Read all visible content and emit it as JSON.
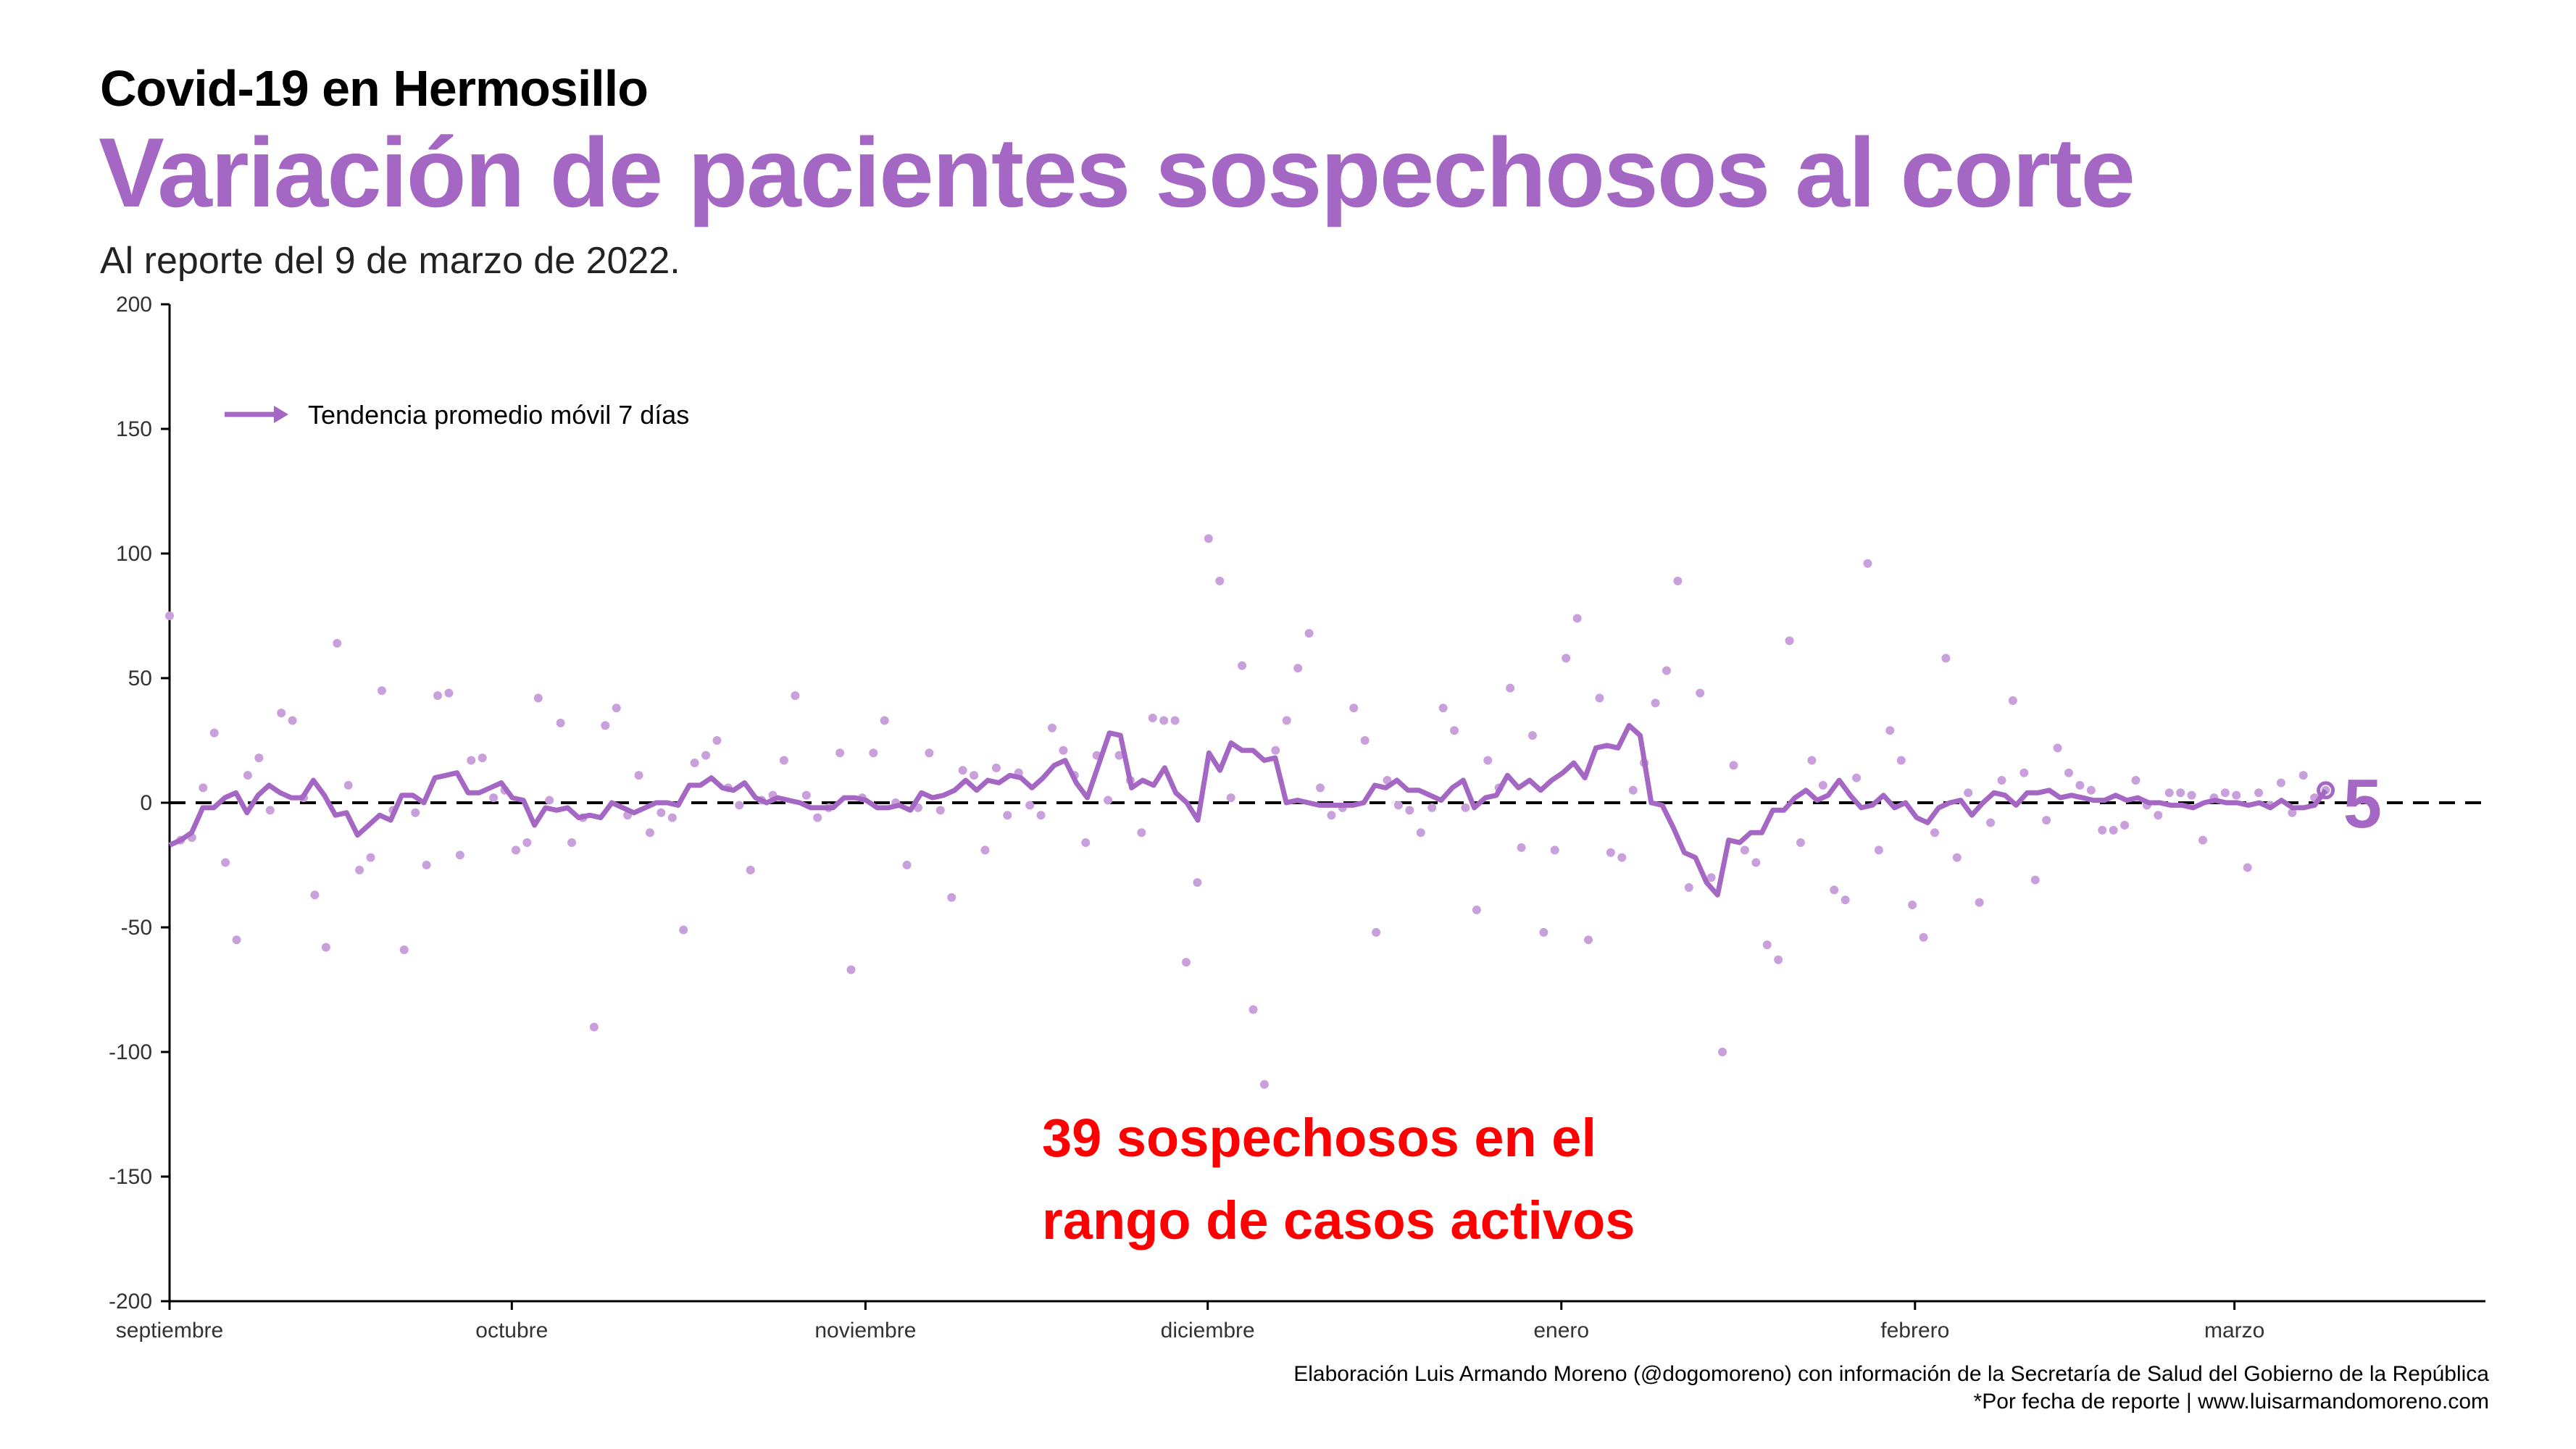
{
  "header": {
    "title": "Covid-19 en Hermosillo",
    "headline": "Variación de pacientes sospechosos al corte",
    "subtitle": "Al reporte del 9 de marzo de 2022."
  },
  "footer": {
    "credit_line1": "Elaboración Luis Armando Moreno (@dogomoreno) con información de la Secretaría de Salud del Gobierno de la República",
    "credit_line2": "*Por fecha de reporte | www.luisarmandomoreno.com"
  },
  "colors": {
    "accent": "#a567c4",
    "points": "#c9a0dc",
    "annotation": "#ff0000",
    "reference_line": "#000000"
  },
  "chart_data": {
    "type": "line",
    "title": "Variación de pacientes sospechosos al corte",
    "xlabel": "",
    "ylabel": "",
    "ylim": [
      -200,
      200
    ],
    "yticks": [
      200,
      150,
      100,
      50,
      0,
      -50,
      -100,
      -150,
      -200
    ],
    "ytick_labels": [
      "200",
      "150",
      "100",
      "50",
      "0",
      "-50",
      "-100",
      "-150",
      "-200"
    ],
    "x_start": "2021-09-01",
    "x_end": "2022-03-09",
    "xlim": [
      "2021-09-01",
      "2022-03-23"
    ],
    "x_ticks": [
      {
        "date": "2021-09-01",
        "label": "septiembre"
      },
      {
        "date": "2021-10-01",
        "label": "octubre"
      },
      {
        "date": "2021-11-01",
        "label": "noviembre"
      },
      {
        "date": "2021-12-01",
        "label": "diciembre"
      },
      {
        "date": "2022-01-01",
        "label": "enero"
      },
      {
        "date": "2022-02-01",
        "label": "febrero"
      },
      {
        "date": "2022-03-01",
        "label": "marzo"
      }
    ],
    "reference_line": 0,
    "legend": {
      "label": "Tendencia promedio móvil 7 días",
      "position": "top-left"
    },
    "series": [
      {
        "name": "Tendencia promedio móvil 7 días",
        "style": "line",
        "values": [
          -17,
          -15,
          -12,
          -2,
          -2,
          2,
          4,
          -4,
          3,
          7,
          4,
          2,
          2,
          9,
          3,
          -5,
          -4,
          -13,
          -9,
          -5,
          -7,
          3,
          3,
          0,
          10,
          11,
          12,
          4,
          4,
          6,
          8,
          2,
          1,
          -9,
          -2,
          -3,
          -2,
          -6,
          -5,
          -6,
          0,
          -2,
          -4,
          -2,
          0,
          0,
          -1,
          7,
          7,
          10,
          6,
          5,
          8,
          2,
          0,
          2,
          1,
          0,
          -2,
          -2,
          -2,
          2,
          2,
          1,
          -2,
          -2,
          -1,
          -3,
          4,
          2,
          3,
          5,
          9,
          5,
          9,
          8,
          11,
          10,
          6,
          10,
          15,
          17,
          8,
          2,
          15,
          28,
          27,
          6,
          9,
          7,
          14,
          4,
          0,
          -7,
          20,
          13,
          24,
          21,
          21,
          17,
          18,
          0,
          1,
          0,
          -1,
          -1,
          -1,
          -1,
          0,
          7,
          6,
          9,
          5,
          5,
          3,
          1,
          6,
          9,
          -2,
          2,
          3,
          11,
          6,
          9,
          5,
          9,
          12,
          16,
          10,
          22,
          23,
          22,
          31,
          27,
          0,
          -1,
          -10,
          -20,
          -22,
          -32,
          -37,
          -15,
          -16,
          -12,
          -12,
          -3,
          -3,
          2,
          5,
          1,
          3,
          9,
          3,
          -2,
          -1,
          3,
          -2,
          0,
          -6,
          -8,
          -2,
          0,
          1,
          -5,
          0,
          4,
          3,
          -1,
          4,
          4,
          5,
          2,
          3,
          2,
          1,
          1,
          3,
          1,
          2,
          0,
          0,
          -1,
          -1,
          -2,
          0,
          1,
          0,
          0,
          -1,
          0,
          -2,
          1,
          -2,
          -2,
          -1,
          5
        ]
      },
      {
        "name": "Variación diaria",
        "style": "points",
        "values": [
          75,
          -15,
          -14,
          6,
          28,
          -24,
          -55,
          11,
          18,
          -3,
          36,
          33,
          2,
          -37,
          -58,
          64,
          7,
          -27,
          -22,
          45,
          -3,
          -59,
          -4,
          -25,
          43,
          44,
          -21,
          17,
          18,
          2,
          5,
          -19,
          -16,
          42,
          1,
          32,
          -16,
          -6,
          -90,
          31,
          38,
          -5,
          11,
          -12,
          -4,
          -6,
          -51,
          16,
          19,
          25,
          6,
          -1,
          -27,
          1,
          3,
          17,
          43,
          3,
          -6,
          -2,
          20,
          -67,
          2,
          20,
          33,
          0,
          -25,
          -2,
          20,
          -3,
          -38,
          13,
          11,
          -19,
          14,
          -5,
          12,
          -1,
          -5,
          30,
          21,
          11,
          -16,
          19,
          1,
          19,
          9,
          -12,
          34,
          33,
          33,
          -64,
          -32,
          106,
          89,
          2,
          55,
          -83,
          -113,
          21,
          33,
          54,
          68,
          6,
          -5,
          -2,
          38,
          25,
          -52,
          9,
          -1,
          -3,
          -12,
          -2,
          38,
          29,
          -2,
          -43,
          17,
          6,
          46,
          -18,
          27,
          -52,
          -19,
          58,
          74,
          -55,
          42,
          -20,
          -22,
          5,
          16,
          40,
          53,
          89,
          -34,
          44,
          -30,
          -100,
          15,
          -19,
          -24,
          -57,
          -63,
          65,
          -16,
          17,
          7,
          -35,
          -39,
          10,
          96,
          -19,
          29,
          17,
          -41,
          -54,
          -12,
          58,
          -22,
          4,
          -40,
          -8,
          9,
          41,
          12,
          -31,
          -7,
          22,
          12,
          7,
          5,
          -11,
          -11,
          -9,
          9,
          -1,
          -5,
          4,
          4,
          3,
          -15,
          2,
          4,
          3,
          -26,
          4,
          -1,
          8,
          -4,
          11,
          2,
          5
        ]
      }
    ],
    "annotations": [
      {
        "text_line1": "39 sospechosos en el",
        "text_line2": "rango de casos activos"
      },
      {
        "end_label": "5"
      }
    ]
  }
}
